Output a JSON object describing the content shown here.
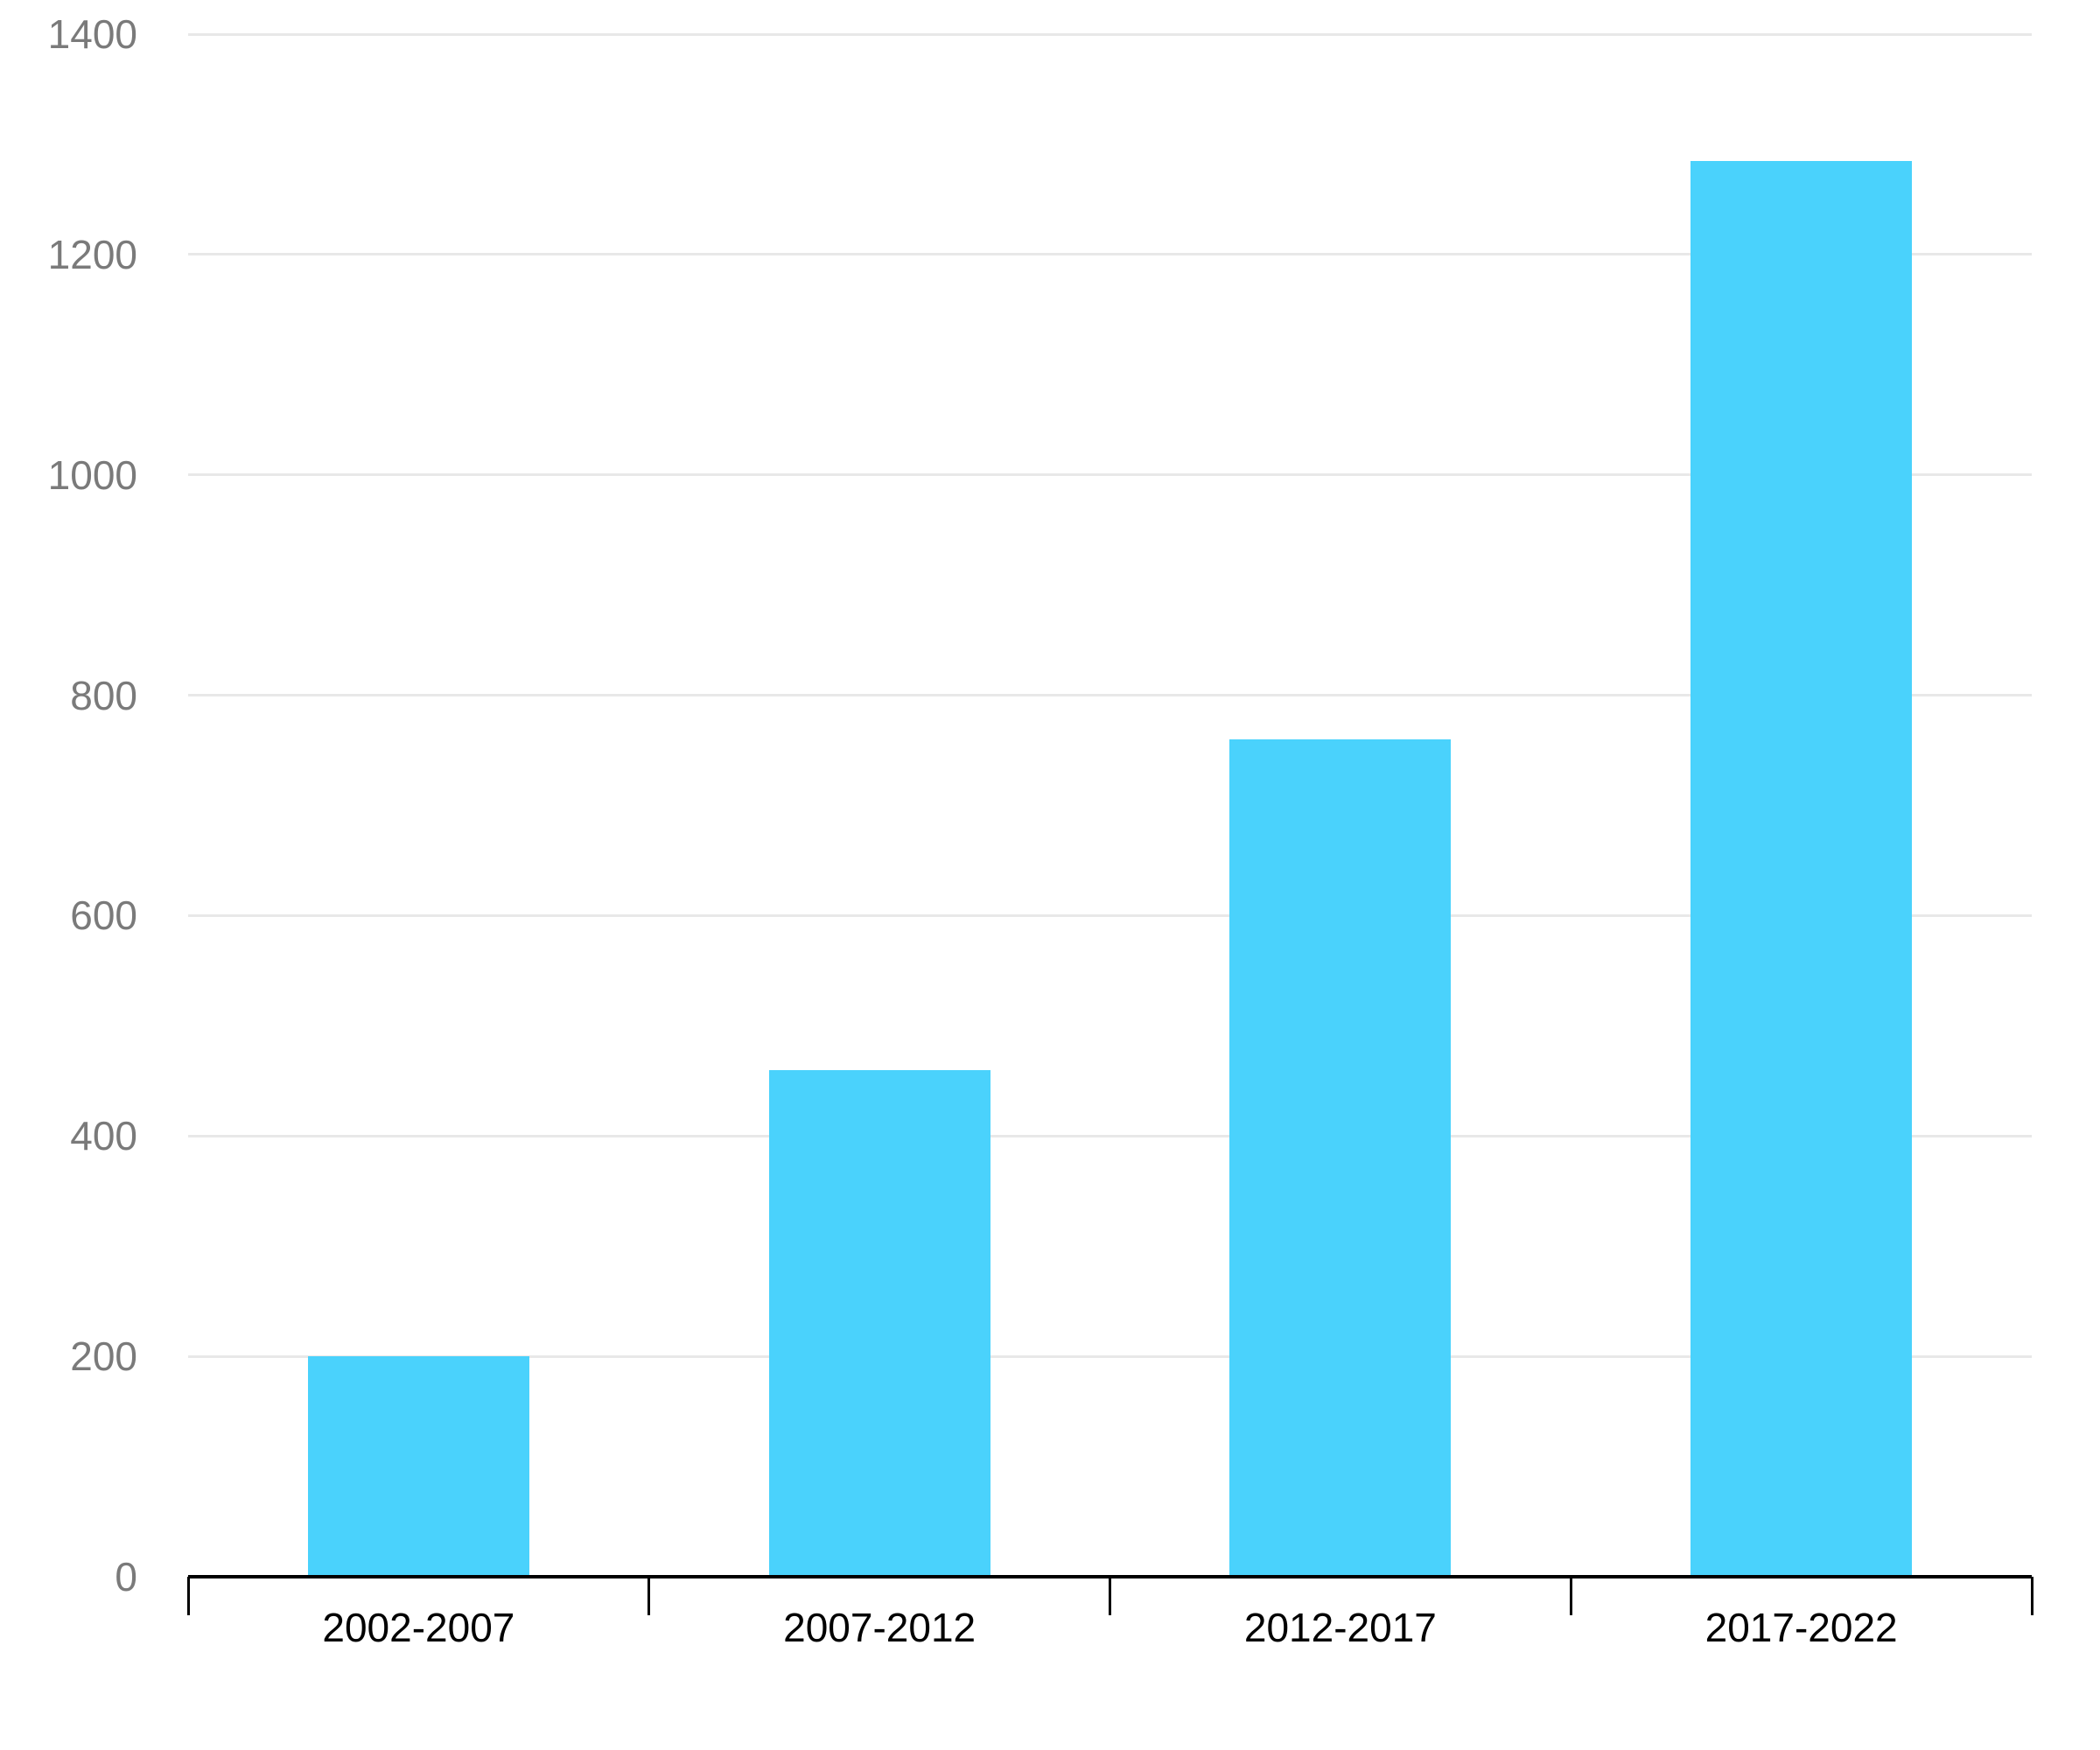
{
  "chart_data": {
    "type": "bar",
    "title": "",
    "subtitle": "",
    "xlabel": "",
    "ylabel": "",
    "categories": [
      "2002-2007",
      "2007-2012",
      "2012-2017",
      "2017-2022"
    ],
    "values": [
      200,
      460,
      760,
      1285
    ],
    "series": [
      {
        "name": "",
        "values": [
          200,
          460,
          760,
          1285
        ]
      }
    ],
    "ylim": [
      0,
      1400
    ],
    "ytick_step": 200,
    "ytick_labels": [
      "0",
      "200",
      "400",
      "600",
      "800",
      "1000",
      "1200",
      "1400"
    ],
    "grid": true,
    "legend": "none",
    "colors": {
      "bar": "#4AD2FC",
      "gridline": "#E8E8E8",
      "axis": "#000000",
      "y_tick_label": "#7A7A7A",
      "x_tick_label": "#000000",
      "background": "#FFFFFF"
    }
  }
}
